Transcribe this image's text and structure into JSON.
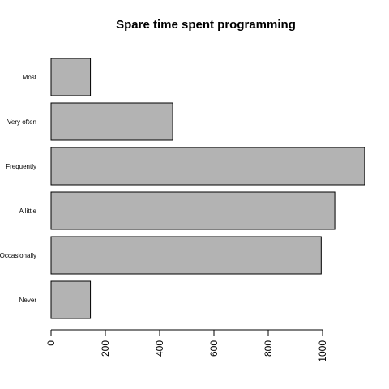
{
  "chart_data": {
    "type": "bar",
    "orientation": "horizontal",
    "title": "Spare time spent programming",
    "categories": [
      "Never",
      "Occasionally",
      "A little",
      "Frequently",
      "Very often",
      "Most"
    ],
    "values": [
      145,
      995,
      1045,
      1155,
      448,
      145
    ],
    "xticks": [
      0,
      200,
      400,
      600,
      800,
      1000
    ],
    "xlim": [
      0,
      1160
    ],
    "grid": false,
    "bar_color": "#b3b3b3",
    "edge_color": "#000000"
  }
}
